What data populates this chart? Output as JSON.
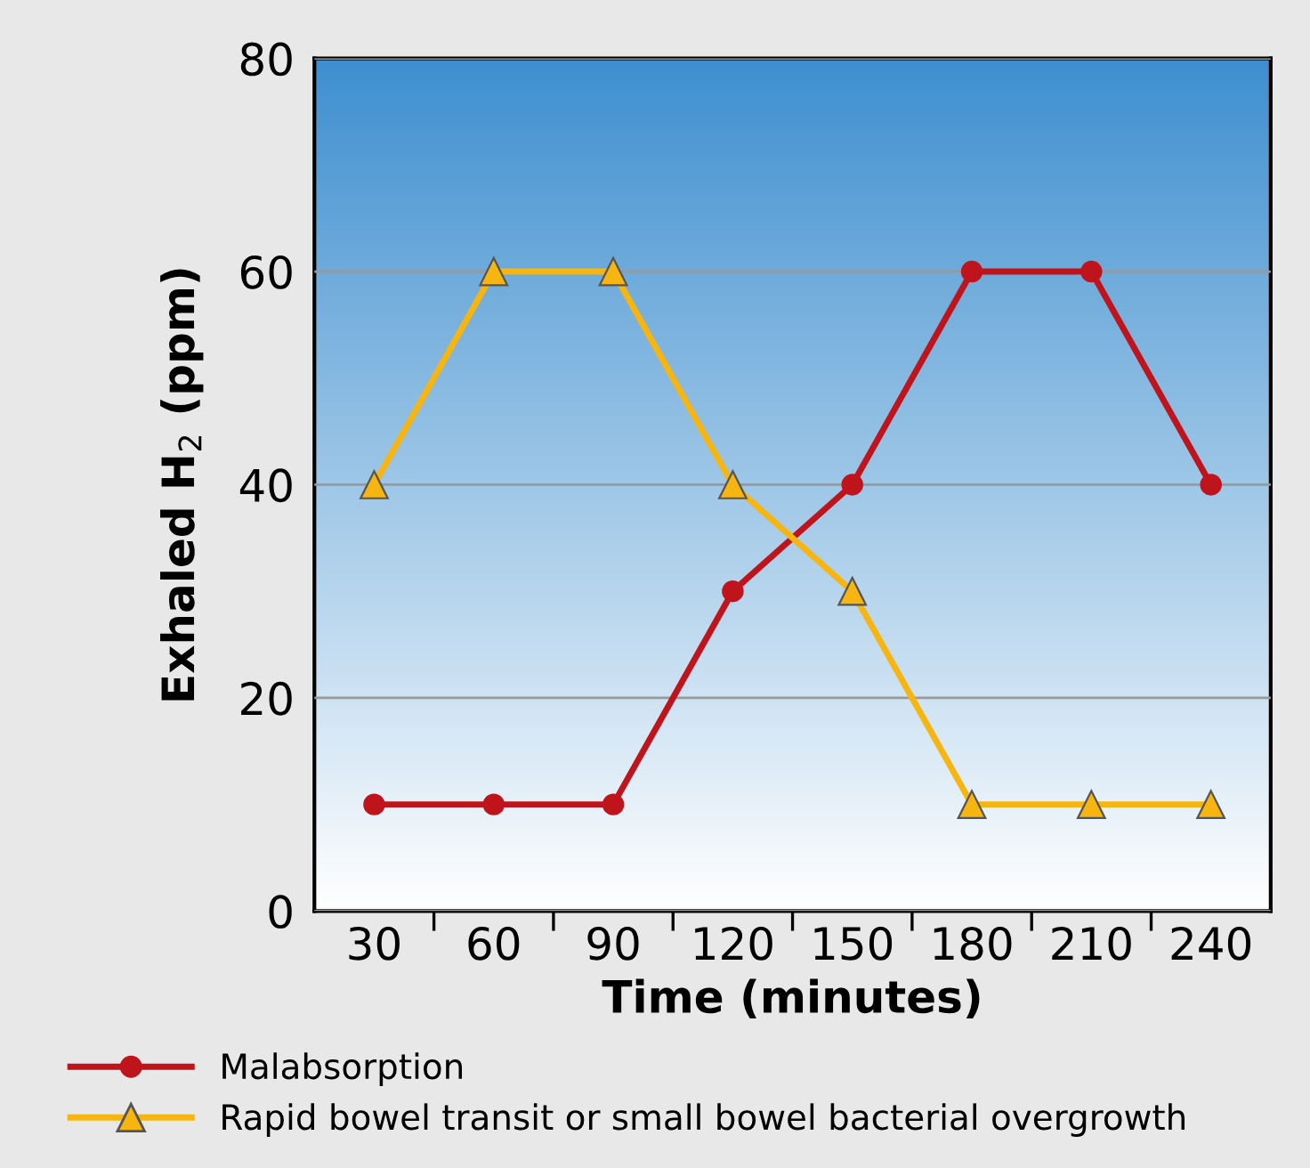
{
  "chart_data": {
    "type": "line",
    "xlabel": "Time (minutes)",
    "ylabel": "Exhaled H$_{2}$ (ppm)",
    "categories": [
      "30",
      "60",
      "90",
      "120",
      "150",
      "180",
      "210",
      "240"
    ],
    "series": [
      {
        "name": "Malabsorption",
        "color": "#c0141c",
        "marker": "circle",
        "values": [
          10,
          10,
          10,
          30,
          40,
          60,
          60,
          40
        ]
      },
      {
        "name": "Rapid bowel transit or small bowel bacterial overgrowth",
        "color": "#f7b512",
        "marker": "triangle",
        "values": [
          40,
          60,
          60,
          40,
          30,
          10,
          10,
          10
        ]
      }
    ],
    "ylim": [
      0,
      80
    ],
    "yticks": [
      0,
      20,
      40,
      60,
      80
    ],
    "grid": "y",
    "legend": "bottom",
    "line_style": "solid"
  }
}
